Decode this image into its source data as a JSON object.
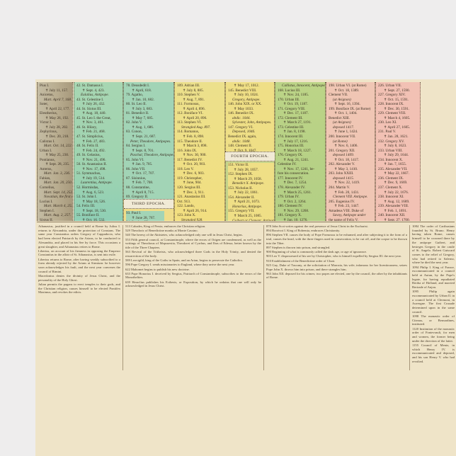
{
  "colors": {
    "brown": "#b3a88e",
    "green": "#a9d3a8",
    "teal": "#9fd0b4",
    "yellow": "#efdc86",
    "yellow_green": "#c6d38a",
    "green2": "#b4cf86",
    "pink": "#f0c3b3",
    "pink2": "#f3c2b6",
    "paper": "#efe4c8"
  },
  "epochas": {
    "third": "THIRD EPOCHA.",
    "fourth": "FOURTH EPOCHA."
  },
  "columns": [
    {
      "lines": [
        "Pius I.",
        "✝ July 11, 157.",
        "Anicetus,",
        "Mart. April 7, 168.",
        "Soter,",
        "✝ April 22, 177.",
        "Eleutherius,",
        "✝ May 26, 192.",
        "Victor I.",
        "✝ July 28, 202.",
        "Zephyrinus,",
        "✝ Dec. 20, 218.",
        "Calixtus I.",
        "Mart. Oct. 14, 222.",
        "Urban I.",
        "✝ May 25, 230.",
        "Pontianus,",
        "✝ Sept. 28, 235.",
        "Anterus,",
        "Mart. Jan. 3, 236.",
        "Fabian,",
        "Mart. Jan. 20, 250.",
        "Cornelius,",
        "Mart. Sept. 14, 252.",
        "Novatian, the first Antipope.",
        "Lucius I.",
        "Mart. March 4, 253.",
        "Stephen I.",
        "Mart. Aug. 2, 257.",
        "Sixtus II.",
        "Mart. Aug. 6, 258.",
        "Dionysius,",
        "✝ Dec. 26, 269.",
        "Felix I.",
        "✝ Dec. 22, 274.",
        "Eutychian,",
        "✝ Dec. 8, 283.",
        "Caius,",
        "✝ April 22, 296."
      ]
    },
    {
      "lines": [
        "42. St. Damasus I.",
        "✝ Sept. 4, 423.",
        "Eulalius, Antipope.",
        "43. St. Celestine I.",
        "✝ July 26, 432.",
        "44. St. Sixtus III.",
        "✝ Aug. 18, 440.",
        "45. St. Leo I. the Great,",
        "✝ Nov. 3, 461.",
        "46. St. Hilary,",
        "✝ Feb. 21, 468.",
        "47. St. Simplicius,",
        "✝ Feb. 27, 483.",
        "48. St. Felix II.",
        "✝ Feb. 24, 492.",
        "49. St. Gelasius,",
        "✝ Nov. 21, 496.",
        "50. St. Anastasius II.",
        "✝ Nov. 17, 498.",
        "51. Symmachus,",
        "✝ July 19, 514.",
        "Laurentius, Antipope.",
        "52. Hormisdas,",
        "✝ Aug. 6, 523.",
        "53. St. John I.",
        "✝ May 18, 526.",
        "54. Felix III.",
        "✝ Sept. 18, 530.",
        "55. Boniface II.",
        "✝ Oct. 16, 532.",
        "Dioscorus, Antipope.",
        "56. John II.",
        "✝ May 27, 535.",
        "57. Agapetus I.",
        "✝ April 22, 536.",
        "58. Silverius,",
        "✝ June 20, 538.",
        "59. Vigilius,",
        "✝ Jan. 10, 555."
      ]
    },
    {
      "lines": [
        "78. Deusdedit I.",
        "✝ April, 618.",
        "79. Agatho,",
        "✝ Jan. 10, 682.",
        "80. St. Leo II.",
        "✝ July 3, 683.",
        "81. Benedict II.",
        "✝ May 7, 685.",
        "82. John V.",
        "✝ Aug. 1, 686.",
        "83. Conon,",
        "✝ Sept. 21, 687.",
        "Peter, Theodore, Antipopes.",
        "84. Sergius I.",
        "✝ Sept. 8, 701.",
        "Paschal, Theodore, Antipopes.",
        "85. John VI.",
        "✝ Jan. 9, 705.",
        "86. John VII.",
        "✝ Oct. 17, 707.",
        "87. Sisinnius,",
        "✝ Feb. 7, 708.",
        "88. Constantine,",
        "✝ April 8, 715.",
        "89. Gregory II.",
        "✝ Feb. 11, 731.",
        "90. Gregory III.",
        "✝ Nov. 27, 741.",
        "91. Zachary,",
        "✝ March 14, 752.",
        "92. Stephen II.",
        "✝ April 24, 757."
      ],
      "lines_below": [
        "93. Paul I.",
        "✝ June 28, 767.",
        "94. Stephen III.",
        "✝ Feb. 1, 772.",
        "Constantine, Antipope.",
        "95. Adrian I.",
        "✝ Dec. 26, 795.",
        "96. Leo III.",
        "✝ June 12, 816."
      ]
    },
    {
      "lines": [
        "109. Adrian III.",
        "✝ July 8, 885.",
        "110. Stephen V.",
        "✝ Aug. 7, 891.",
        "111. Formosus,",
        "✝ April 4, 896.",
        "112. Boniface VI.",
        "✝ April 20, 896.",
        "113. Stephen VI.",
        "Strangled Aug. 897.",
        "114. Romanus,",
        "✝ Feb. 8, 898.",
        "115. Theodore II.",
        "✝ March 3, 898.",
        "116. John IX.",
        "✝ Nov. 30, 900.",
        "117. Benedict IV.",
        "✝ Oct. 20, 903.",
        "118. Leo V.",
        "✝ Dec. 6, 903.",
        "119. Christopher,",
        "✝ June, 904.",
        "120. Sergius III.",
        "✝ Dec. 3, 911.",
        "121. Anastasius III.",
        "Oct. 913.",
        "122. Lando,",
        "✝ April 26, 914.",
        "123. John X.",
        "Strangled 928.",
        "124. Leo VI.",
        "✝ Feb. 1, 929.",
        "125. Stephen VII.",
        "✝ March 12, 931.",
        "126. John XI.",
        "✝ Feb. 1, 936.",
        "127. Leo VII.",
        "✝ July, 939.",
        "128. Stephen VIII.",
        "✝ Nov. 942.",
        "129. Martin III.",
        "✝ Jan. 22, 946.",
        "130. Agapetus II.",
        "✝ March 18, 956.",
        "131. John XII.",
        "Deposed, Dec. 963.",
        "✝ May 14, 964.",
        "132. Leo VIII.",
        "✝ March 17, 965.",
        "Benedict V. Antipope."
      ]
    },
    {
      "lines": [
        "✝ May 17, 1012.",
        "145. Benedict VIII.",
        "✝ July 10, 1024.",
        "Gregory, Antipope.",
        "146. John XIX. or XX.",
        "✝ May 1033.",
        "146. Benedict IX.",
        "abdic. 1044.",
        "Sylvester, John, Antipopes.",
        "147. Gregory VI.",
        "Deposed, 1046.",
        "Benedict IX. again,",
        "abdic. 1048.",
        "148. Clement II.",
        "✝ Oct. 9, 1047.",
        "149. Damasus II.",
        "✝ Aug. 8, 1048.",
        "150. St. Leo IX.",
        "✝ April 19, 1054."
      ],
      "lines_below": [
        "151. Victor II.",
        "✝ July 28, 1057.",
        "152. Stephen IX.",
        "✝ March 29, 1058.",
        "Benedict X. Antipope.",
        "153. Nicholas II.",
        "✝ July 22, 1061.",
        "154. Alexander II.",
        "✝ April 21, 1073.",
        "Honorius, Antipope.",
        "155. Gregory VII.",
        "✝ March 25, 1085.",
        "Guibert or Clement, Antipope.",
        "156. Victor III.",
        "✝ Sept. 16, 1087.",
        "157. Urban II.",
        "✝ July 29, 1099.",
        "158. Paschal II.",
        "✝ Jan. 21, 1118.",
        "Albert, Theodoric, Maginulf, Antipopes.",
        "159. Gelasius II.",
        "✝ Jan. 29, 1119."
      ]
    },
    {
      "lines": [
        "Callistus, Innocent, Antipopes.",
        "168. Lucius III.",
        "✝ Nov. 24, 1185.",
        "170. Urban III.",
        "✝ Oct. 19, 1187.",
        "171. Gregory VIII.",
        "✝ Dec. 17, 1187.",
        "172. Clement III.",
        "✝ March 27, 1191.",
        "173. Celestine III.",
        "✝ Jan. 8, 1198.",
        "174. Innocent III.",
        "✝ July 17, 1216.",
        "175. Honorius III.",
        "✝ March 18, 1227.",
        "176. Gregory IX.",
        "✝ Aug. 21, 1241.",
        "Celestine IV.",
        "✝ Nov. 17, 1241, be-",
        "fore his consecration.",
        "177. Innocent IV.",
        "✝ Dec. 7, 1254.",
        "178. Alexander IV.",
        "✝ March 25, 1261.",
        "179. Urban IV.",
        "✝ Oct. 2, 1264.",
        "180. Clement IV.",
        "✝ Nov. 29, 1268.",
        "181. Gregory X.",
        "✝ Jan. 10, 1276.",
        "182. Innocent V.",
        "✝ June 22, 1276.",
        "Adrian V.",
        "✝ Aug. 18, 1276, be-",
        "fore his consecration.",
        "183. John XXI.",
        "✝ May 17, 1277.",
        "184. Nicholas III.",
        "✝ Aug. 22, 1280.",
        "185. Martin IV.",
        "✝ March 28, 1285.",
        "186. Honorius IV.",
        "✝ April 3, 1287.",
        "187. Nicholas IV.",
        "✝ April 4, 1292.",
        "188. St. Celestine V.",
        "abdic. Dec. 13, 1294.",
        "✝ May 19, 1296."
      ]
    },
    {
      "lines": [
        "198. Urban VI. (at Rome)",
        "✝ Oct. 18, 1389.",
        "Clement VII.",
        "(at Avignon)",
        "✝ Sept. 16, 1394.",
        "199. Boniface IX. (at Rome)",
        "✝ Oct. 1, 1404.",
        "Benedict XIII.",
        "(at Avignon)",
        "deposed 1417.",
        "✝ June 1, 1424.",
        "200. Innocent VII.",
        "(at Rome)",
        "✝ Nov. 6, 1406.",
        "201. Gregory XII.",
        "deposed 1409.",
        "✝ Oct. 18, 1417.",
        "202. Alexander V.",
        "✝ May 3, 1410.",
        "203. John XXIII.",
        "deposed 1415.",
        "✝ Nov. 22, 1419.",
        "204. Martin V.",
        "✝ Feb. 20, 1431.",
        "Clement VIII. Antipope.",
        "205. Eugenius IV.",
        "✝ Feb. 23, 1447.",
        "Amadeus VIII. Duke of",
        "Savoy, Antipope under",
        "the name of Felix V.",
        "206. Nicholas V.",
        "✝ March 24, 1455.",
        "207. Calixtus III.",
        "✝ Aug. 6, 1458.",
        "208. Pius II.",
        "✝ Aug. 14, 1464.",
        "209. Paul II.",
        "✝ July 28, 1471.",
        "210. Sixtus IV.",
        "✝ Aug. 12, 1484.",
        "211. Innocent VIII.",
        "✝ July 25, 1492.",
        "212. Alexander VI.",
        "✝ Aug. 18, 1503.",
        "213. Pius III.",
        "✝ Oct. 18, 1503.",
        "214. Julius II.",
        "✝ Feb. 21, 1513.",
        "215. Leo X.",
        "✝ Dec. 1, 1521."
      ]
    },
    {
      "lines": [
        "226. Urban VII.",
        "✝ Sept. 27, 1590.",
        "227. Gregory XIV.",
        "✝ Oct. 15, 1591.",
        "228. Innocent IX.",
        "✝ Dec. 30, 1591.",
        "229. Clement VIII.",
        "✝ March 4, 1605.",
        "230. Leo XI.",
        "✝ April 27, 1605.",
        "231. Paul V.",
        "✝ Jan. 28, 1621.",
        "232. Gregory XV.",
        "✝ July 8, 1623.",
        "233. Urban VIII.",
        "✝ July 29, 1644.",
        "234. Innocent X.",
        "✝ Jan. 7, 1655.",
        "235. Alexander VII.",
        "✝ May 22, 1667.",
        "236. Clement IX.",
        "✝ Dec. 9, 1669.",
        "237. Clement X.",
        "✝ July 22, 1676.",
        "238. Innocent XI.",
        "✝ Aug. 12, 1689.",
        "239. Alexander VIII.",
        "✝ Feb. 1, 1691.",
        "240. Innocent XII.",
        "✝ Sept. 27, 1700.",
        "241. Clement XI.",
        "✝ March 19, 1721.",
        "242. Innocent XIII.",
        "✝ March 7, 1724.",
        "243. Benedict XIII.",
        "✝ Feb. 21, 1730.",
        "244. Clement XII.",
        "✝ Feb. 6, 1740.",
        "245. Benedict XIV.",
        "✝ May 3, 1758.",
        "246. Clement XIII.",
        "✝ Feb. 2, 1769.",
        "247. Clement XIV.",
        "✝ Sept. 22, 1774.",
        "248. Pius VI.",
        "✝ Aug. 29, 1799.",
        "249. Pius VII.",
        "born Aug. 14, 1742,",
        "elected March 14,",
        "1800."
      ]
    }
  ],
  "notes": [
    [
      "Athanasius, justified in a council held at Rome by Julius I. returns to Alexandria, under the protection of Constans. The same year Constantius orders Gregory of Cappadocia, who had been elected Patriarch by the Arians, to be conducted to Alexandria, and placed in his See by force. This occasions a great slaughter, and Athanasius retires to Rome.",
      "Liberius, on account of his firmness in opposing the Emperor Constantius in the affair of St. Athanasius, is sent into exile.",
      "Liberius returns to Rome, after having weakly subscribed to a form already rejected by the Arians at Sirmium: he however soon acknowledges his fault, and the next year convenes the council of Rimini.",
      "Macedonius denies the divinity of Jesus Christ, and the personality of the Holy Ghost.",
      "Julian permits the pagans to erect temples to their gods, and the Christian religion, causes himself to be elected Pontifex Maximus, and revokes the edicts."
    ],
    [
      "513 Cabades, King of Persia, embraces the Christian religion.",
      "529 Theodoric of Benedictine monks at Monte Cassino.",
      "540 The heresy of the Aktistetes, who acknowledged only one will in Jesus Christ, begins.",
      "553 Fifth general council, at Constantinople, where the errors of Origen are condemned, as well as the writings of Theodorus of Mopsuestia, Theodoret of Cyrrhus, and Ibas of Edessa, better known by the title of the Three Chapters.",
      "563 Revival of the Tritheists, who acknowledged three Gods in the Holy Trinity, and denied the resurrection of the body.",
      "589 Leovigild, king of the Goths in Spain, and an Arian, begins to persecute the Catholics.",
      "596 Pope Gregory I. sends missionaries to England, where they arrive the next year.",
      "622 Mahomet begins to publish his new doctrine.",
      "633 Pope Honorius I. deceived by Sergius, Patriarch of Constantinople, subscribes to the errors of the Monothelites.",
      "639 Heraclius publishes his Ecthesis, or Exposition, by which he ordains that one will only be acknowledged in Jesus Christ."
    ],
    [
      "878 John Scot writes against the real presence of Jesus Christ in the Eucharist.",
      "894 Borzivoi I. King of Bohemia, embraces Christianity.",
      "896 Stephen VII. causes the body of Pope Formosus to be exhumed, and after subjecting it to the form of a trial, causes the head, with the three fingers used in consecration, to be cut off, and the corpse to be thrown into the Tiber.",
      "897 Stephen is thrown into prison, and strangled.",
      "900 Beginning of what is commonly called the dark age, or age of ignorance.",
      "903 Leo V. dispossessed of his see by Christopher, who is himself expelled by Sergius III. the next year.",
      "910 Establishment of the Benedictine order of Cluni.",
      "925 Guy, Duke of Tuscany, at the solicitation of Marozia, his wife, infamous for her licentiousness, seizes Pope John X. throws him into prison, and there strangles him.",
      "963 John XII. deposed for his crimes; two popes are elected, one by the council, the other by the inhabitants of Rome."
    ],
    [
      "1084 The order of Carthusians founded by St. Bruno. Henry having taken Rome, causes himself to be crowned there by the antipope Guibert, and besieges Gregory in the castle of St. Angelo. Robert Guiscard comes to the relief of Gregory, who had retired to Salerno, where he died the next year.",
      "1094 Philip I. King of France, excommunicated in a council held at Autun, by the Pope's legate, for having repudiated Bertha of Holland, and married Bertrade of Anjou.",
      "1095 Philip again excommunicated by Urban II. in a council held at Clermont, in Auvergne. The first Crusade determined upon in the same council.",
      "1098 The monastic order of Citeaux, or Bernardines, instituted.",
      "1120 Institution of the monastic order of Fontevrault, for men and women, the former being under the direction of the latter.",
      "1155 Council of Mentz, in which Henry IV. is excommunicated and deposed, and his son Henry V. who had revolted."
    ]
  ]
}
